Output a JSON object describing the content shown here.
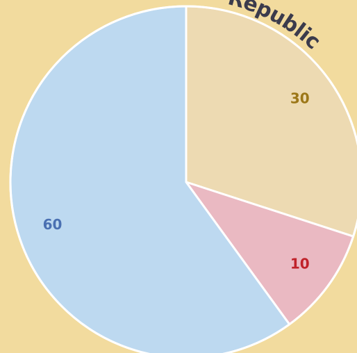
{
  "chart_data": {
    "type": "pie",
    "annotation": "Republic",
    "values": [
      30,
      10,
      60
    ],
    "colors": [
      "#eddab2",
      "#eab9c2",
      "#bdd9f0"
    ],
    "label_colors": [
      "#9c7718",
      "#c0222a",
      "#4a70b2"
    ]
  }
}
